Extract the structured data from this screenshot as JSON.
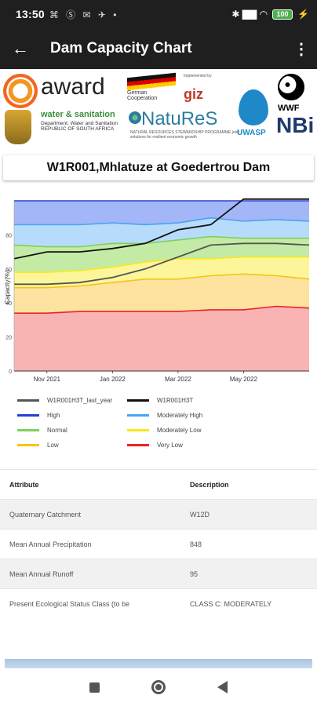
{
  "status_bar": {
    "time": "13:50",
    "left_icons": "⌘ Ⓢ ✉ ✈ •",
    "right_icons": "✱ ▇▇ ◠",
    "battery": "100"
  },
  "app_bar": {
    "title": "Dam Capacity Chart",
    "back_icon": "arrow-back-icon",
    "menu_icon": "more-vert-icon"
  },
  "logos": {
    "award": "award",
    "water_sanitation": "water & sanitation",
    "department": "Department: Water and Sanitation REPUBLIC OF SOUTH AFRICA",
    "german_cooperation": "German Cooperation",
    "giz": "giz",
    "implemented_by": "Implemented by",
    "natures": "NatuReS",
    "natures_sub": "NATURAL RESOURCES STEWARDSHIP PROGRAMME joint solutions for resilient economic growth",
    "uwasp": "UWASP",
    "wwf": "WWF",
    "nbi": "NBi"
  },
  "dam_title": "W1R001,Mhlatuze at Goedertrou Dam",
  "chart_data": {
    "type": "area",
    "ylabel": "Capacity(%)",
    "xlabel": "",
    "ylim": [
      0,
      100
    ],
    "yticks": [
      "0",
      "20",
      "40",
      "60",
      "80"
    ],
    "xticks": [
      "Nov 2021",
      "Jan 2022",
      "Mar 2022",
      "May 2022"
    ],
    "x": [
      "2021-10-01",
      "2021-11-01",
      "2021-12-01",
      "2022-01-01",
      "2022-02-01",
      "2022-03-01",
      "2022-04-01",
      "2022-05-01",
      "2022-06-01",
      "2022-07-01"
    ],
    "grid": false,
    "legend_position": "bottom",
    "colors": {
      "high": "#a3b6f7",
      "moderately_high": "#b7dcfb",
      "normal": "#c4eba6",
      "moderately_low": "#fcf59a",
      "low": "#fde2a0",
      "very_low": "#fab3b3",
      "high_line": "#2d3ecf",
      "moderately_high_line": "#4aa3f2",
      "normal_line": "#7fcf5e",
      "moderately_low_line": "#f7e91c",
      "low_line": "#f5c515",
      "very_low_line": "#e82424",
      "last_year": "#555555",
      "current": "#111111"
    },
    "bands": [
      {
        "name": "Very Low",
        "key": "very_low",
        "upper": [
          34,
          34,
          35,
          35,
          35,
          35,
          36,
          36,
          38,
          37
        ]
      },
      {
        "name": "Low",
        "key": "low",
        "upper": [
          49,
          49,
          50,
          52,
          54,
          54,
          56,
          57,
          56,
          54
        ]
      },
      {
        "name": "Moderately Low",
        "key": "moderately_low",
        "upper": [
          58,
          58,
          59,
          61,
          64,
          66,
          66,
          67,
          67,
          67
        ]
      },
      {
        "name": "Normal",
        "key": "normal",
        "upper": [
          74,
          73,
          73,
          75,
          75,
          77,
          79,
          78,
          78,
          78
        ]
      },
      {
        "name": "Moderately High",
        "key": "moderately_high",
        "upper": [
          86,
          86,
          86,
          87,
          86,
          87,
          90,
          88,
          89,
          88
        ]
      },
      {
        "name": "High",
        "key": "high",
        "upper": [
          100,
          100,
          100,
          100,
          100,
          100,
          100,
          100,
          100,
          100
        ]
      }
    ],
    "series": [
      {
        "name": "W1R001H3T_last_year",
        "key": "last_year",
        "values": [
          51,
          51,
          52,
          55,
          60,
          67,
          74,
          75,
          75,
          74
        ]
      },
      {
        "name": "W1R001H3T",
        "key": "current",
        "values": [
          66,
          70,
          70,
          72,
          75,
          83,
          86,
          101,
          101,
          101
        ]
      }
    ],
    "legend": [
      {
        "label": "W1R001H3T_last_year",
        "color_key": "last_year"
      },
      {
        "label": "W1R001H3T",
        "color_key": "current"
      },
      {
        "label": "High",
        "color_key": "high_line"
      },
      {
        "label": "Moderately High",
        "color_key": "moderately_high_line"
      },
      {
        "label": "Normal",
        "color_key": "normal_line"
      },
      {
        "label": "Moderately Low",
        "color_key": "moderately_low_line"
      },
      {
        "label": "Low",
        "color_key": "low_line"
      },
      {
        "label": "Very Low",
        "color_key": "very_low_line"
      }
    ]
  },
  "table": {
    "header": {
      "attr": "Attribute",
      "desc": "Description"
    },
    "rows": [
      {
        "attr": "Quaternary Catchment",
        "desc": "W12D"
      },
      {
        "attr": "Mean Annual Precipitation",
        "desc": "848"
      },
      {
        "attr": "Mean Annual Runoff",
        "desc": "95"
      },
      {
        "attr": "Present Ecological Status Class (to be",
        "desc": "CLASS C: MODERATELY"
      }
    ]
  },
  "nav": {
    "recents_icon": "square-icon",
    "home_icon": "circle-home-icon",
    "back_icon": "triangle-back-icon"
  }
}
